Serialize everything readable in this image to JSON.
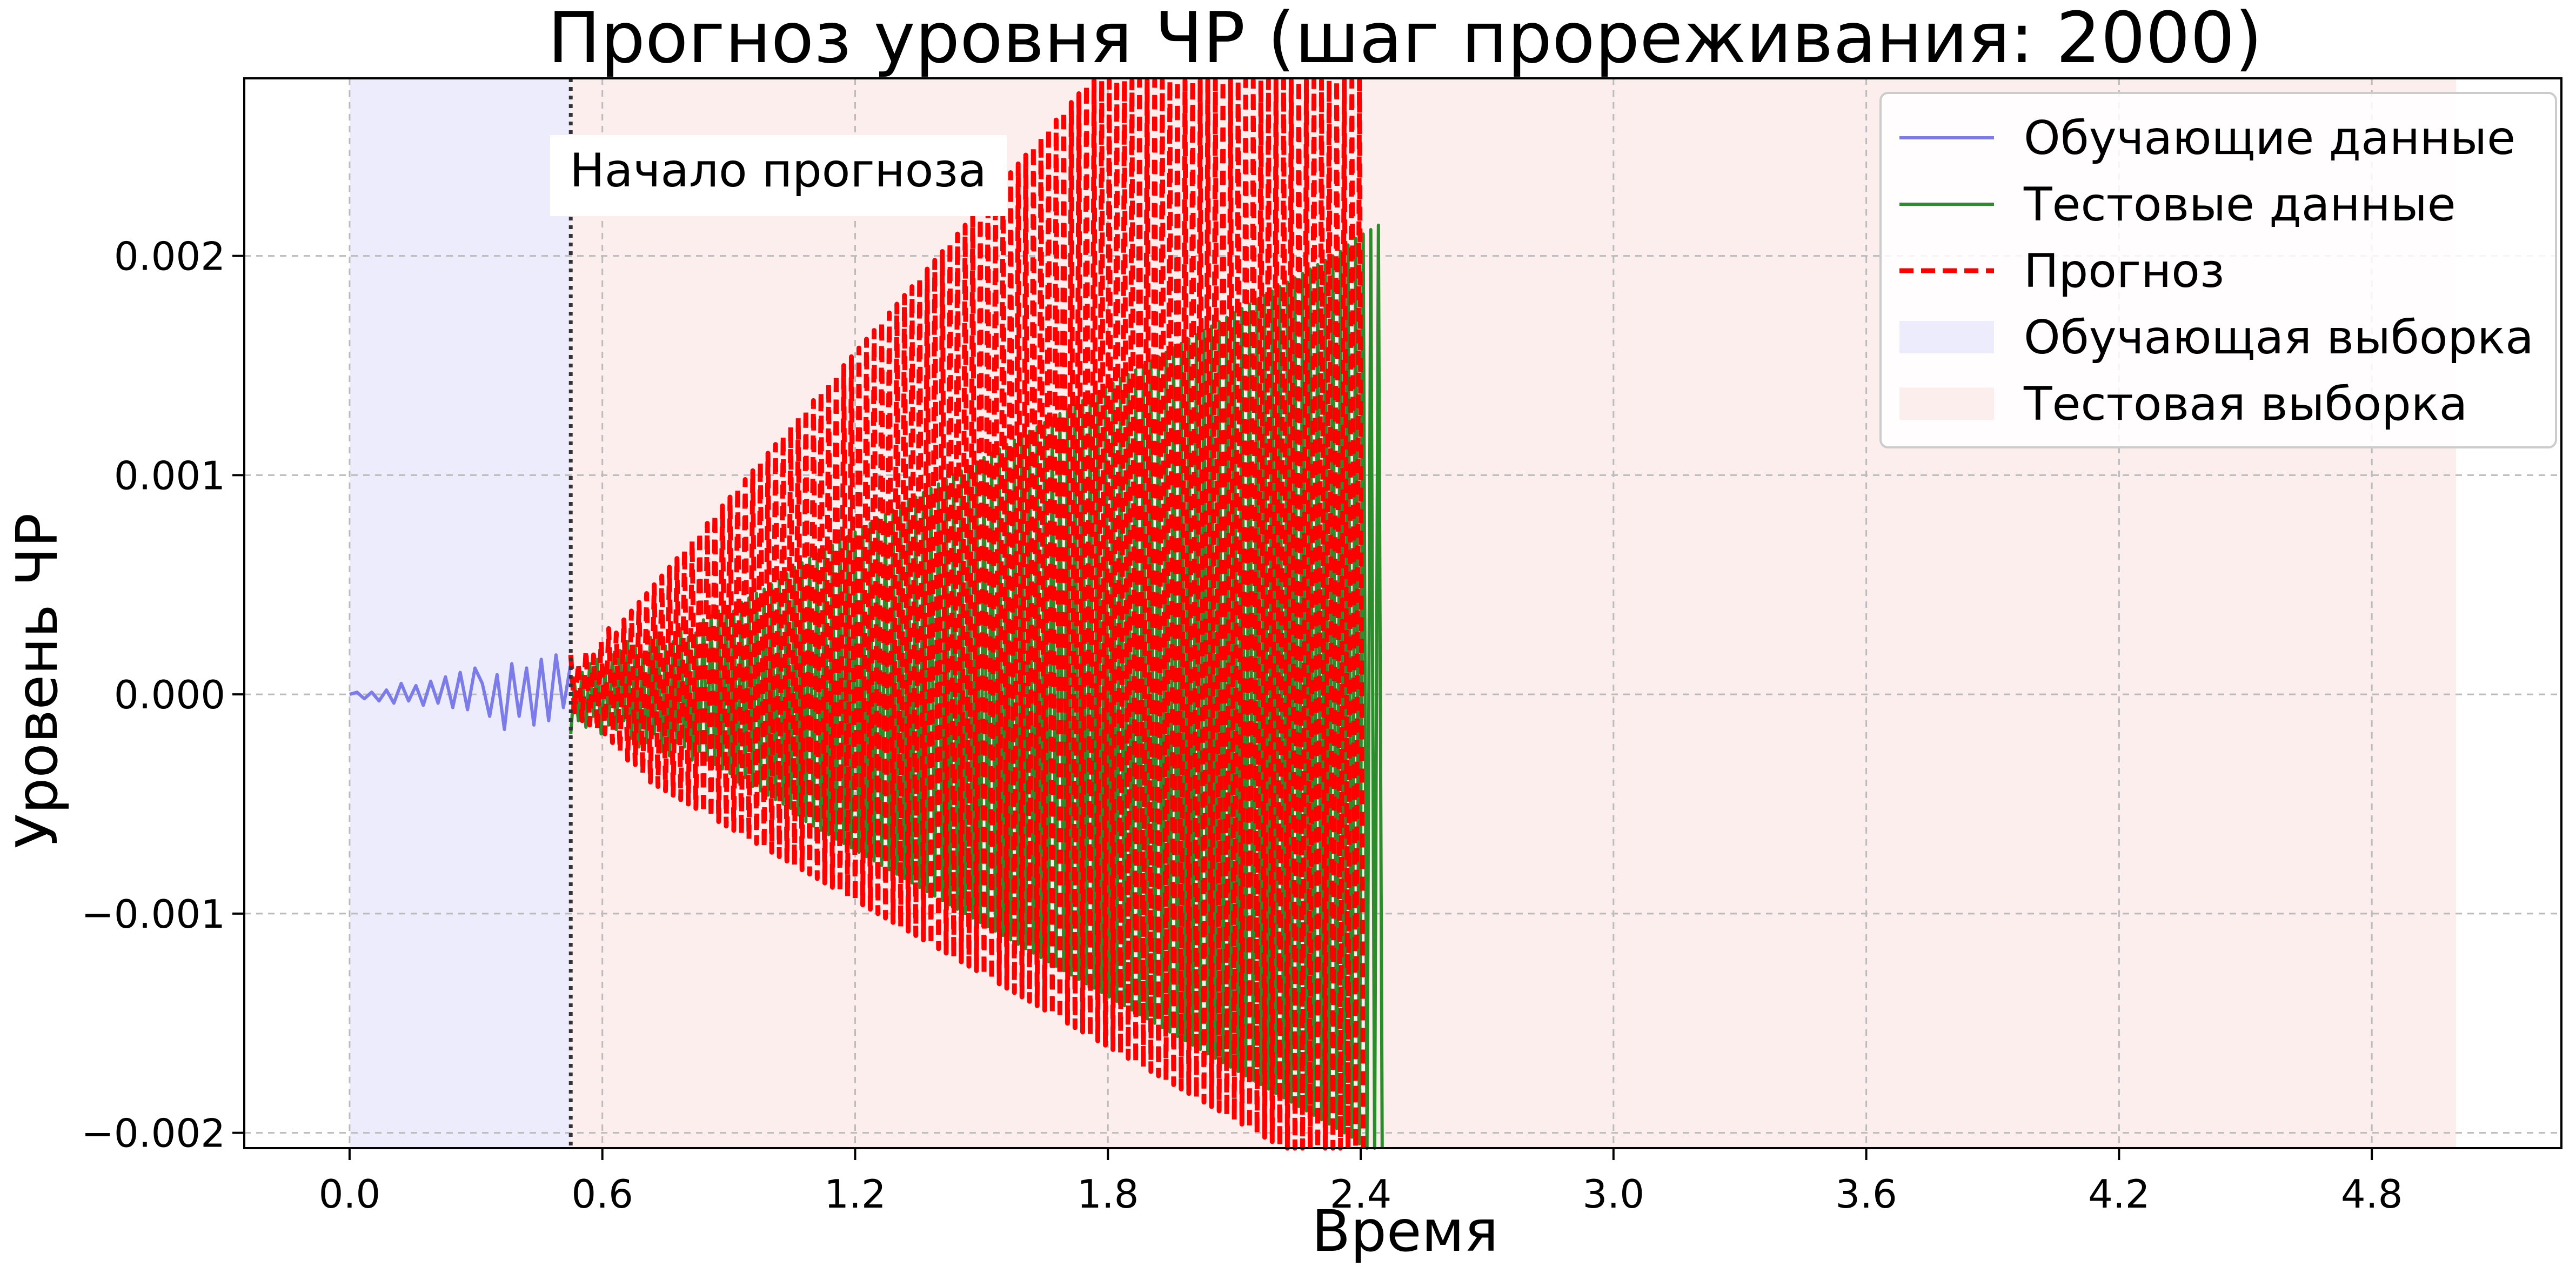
{
  "chart_data": {
    "type": "line",
    "title": "Прогноз уровня ЧР (шаг прореживания: 2000)",
    "xlabel": "Время",
    "ylabel": "Уровень ЧР",
    "xlim": [
      -0.25,
      5.25
    ],
    "ylim": [
      -0.00207,
      0.00281
    ],
    "x_ticks": [
      0.0,
      0.6,
      1.2,
      1.8,
      2.4,
      3.0,
      3.6,
      4.2,
      4.8
    ],
    "x_tick_labels": [
      "0.0",
      "0.6",
      "1.2",
      "1.8",
      "2.4",
      "3.0",
      "3.6",
      "4.2",
      "4.8"
    ],
    "y_ticks": [
      -0.002,
      -0.001,
      0.0,
      0.001,
      0.002
    ],
    "y_tick_labels": [
      "−0.002",
      "−0.001",
      "0.000",
      "0.001",
      "0.002"
    ],
    "grid": true,
    "legend_position": "top-right",
    "forecast_start": 0.525,
    "forecast_label": "Начало прогноза",
    "regions": [
      {
        "name": "Обучающая выборка",
        "x": [
          0.0,
          0.525
        ],
        "color": "#ececfc"
      },
      {
        "name": "Тестовая выборка",
        "x": [
          0.525,
          5.0
        ],
        "color": "#fdeeee"
      }
    ],
    "series": [
      {
        "name": "Обучающие данные",
        "color": "#7b7bea",
        "style": "solid",
        "x_start": 0.0,
        "x_step": 0.0175,
        "values": [
          0.0,
          1e-05,
          -2e-05,
          1e-05,
          -3e-05,
          2e-05,
          -4e-05,
          5e-05,
          -3e-05,
          4e-05,
          -5e-05,
          6e-05,
          -4e-05,
          8e-05,
          -6e-05,
          0.0001,
          -7e-05,
          0.00012,
          5e-05,
          -0.0001,
          9e-05,
          -0.00016,
          0.00014,
          -0.0001,
          0.00012,
          -0.00014,
          0.00016,
          -0.00012,
          0.00018,
          -6e-05,
          0.00014
        ]
      },
      {
        "name": "Тестовые данные",
        "color": "#2a8c2a",
        "style": "solid",
        "x_start": 0.525,
        "x_step": 0.009,
        "values": [
          -0.00018,
          5e-05,
          -0.00012,
          0.0001,
          -0.00015,
          0.00014,
          -0.0001,
          0.00016,
          -0.00018,
          0.00012,
          -0.00014,
          0.00018,
          -0.00016,
          0.0002,
          -0.00012,
          0.00024,
          -0.0002,
          0.00022,
          -0.00024,
          0.00018,
          -0.00022,
          0.00026,
          -0.00018,
          0.00028,
          -0.00026,
          0.00022,
          -0.00028,
          0.00024,
          -0.00022,
          0.0003,
          -0.00024,
          0.00026,
          -0.0003,
          0.00028,
          -0.00026,
          0.00034,
          -0.0003,
          0.00036,
          -0.00032,
          0.00038,
          -0.00034,
          0.0004,
          -0.00036,
          0.00038,
          -0.0004,
          0.00042,
          -0.00038,
          0.00044,
          -0.00042,
          0.00046,
          -0.00044,
          0.00048,
          -0.00046,
          0.0005,
          -0.00048,
          0.00052,
          -0.0005,
          0.00055,
          -0.00052,
          0.00058,
          -0.00055,
          0.0006,
          -0.00058,
          0.00062,
          -0.0006,
          0.00064,
          -0.00062,
          0.00066,
          -0.00064,
          0.00068,
          -0.00066,
          0.0007,
          -0.00068,
          0.00072,
          -0.0007,
          0.00074,
          -0.00072,
          0.00076,
          -0.00074,
          0.00078,
          -0.00076,
          0.0008,
          -0.00078,
          0.00082,
          -0.0008,
          0.00084,
          -0.00082,
          0.00086,
          -0.00084,
          0.00088,
          -0.00086,
          0.0009,
          -0.00088,
          0.00092,
          -0.0009,
          0.00094,
          -0.00092,
          0.00096,
          -0.00094,
          0.00098,
          -0.00096,
          0.001,
          -0.00098,
          0.00102,
          -0.001,
          0.00104,
          -0.00102,
          0.00106,
          -0.00104,
          0.00108,
          -0.00106,
          0.0011,
          -0.00108,
          0.00112,
          -0.0011,
          0.00114,
          -0.00112,
          0.00116,
          -0.00114,
          0.00118,
          -0.00116,
          0.0012,
          -0.00118,
          0.00122,
          -0.0012,
          0.00124,
          -0.00122,
          0.00126,
          -0.00124,
          0.00128,
          -0.00126,
          0.0013,
          -0.00128,
          0.00132,
          -0.0013,
          0.00134,
          -0.00132,
          0.00136,
          -0.00134,
          0.00138,
          -0.00136,
          0.0014,
          -0.00138,
          0.00142,
          -0.0014,
          0.00144,
          -0.00142,
          0.00146,
          -0.00144,
          0.00148,
          -0.00146,
          0.0015,
          -0.00148,
          0.00152,
          -0.0015,
          0.00154,
          -0.00152,
          0.00156,
          -0.00154,
          0.00158,
          -0.00156,
          0.0016,
          -0.00158,
          0.00162,
          -0.0016,
          0.00164,
          -0.00162,
          0.00166,
          -0.00164,
          0.00168,
          -0.00166,
          0.0017,
          -0.00168,
          0.00172,
          -0.0017,
          0.00174,
          -0.00172,
          0.00176,
          -0.00174,
          0.00178,
          -0.00176,
          0.0018,
          -0.00178,
          0.00182,
          -0.0018,
          0.00184,
          -0.00182,
          0.00186,
          -0.00184,
          0.00188,
          -0.00186,
          0.0019,
          -0.00188,
          0.00192,
          -0.0019,
          0.00194,
          -0.00192,
          0.00196,
          -0.00194,
          0.00198,
          -0.00196,
          0.002,
          -0.00198,
          0.00202,
          -0.002,
          0.00205,
          -0.00202,
          0.00208,
          -0.00205,
          0.0021,
          -0.00208,
          0.00212,
          -0.0021,
          0.00214,
          -0.00212
        ]
      },
      {
        "name": "Прогноз",
        "color": "#ff0000",
        "style": "dashed",
        "x_start": 0.525,
        "x_step": 0.009,
        "values": [
          0.00018,
          -8e-05,
          0.00014,
          -0.00012,
          0.0002,
          -0.00014,
          0.00018,
          -0.00016,
          0.00024,
          -0.00018,
          0.0003,
          -0.00022,
          0.00028,
          -0.00026,
          0.00034,
          -0.0003,
          0.00038,
          -0.00032,
          0.00042,
          -0.00036,
          0.00046,
          -0.0004,
          0.0005,
          -0.00042,
          0.00054,
          -0.00044,
          0.00058,
          -0.00046,
          0.00062,
          -0.00048,
          0.00066,
          -0.0005,
          0.0007,
          -0.00052,
          0.00074,
          -0.00054,
          0.00078,
          -0.00056,
          0.00082,
          -0.00058,
          0.00086,
          -0.0006,
          0.0009,
          -0.00062,
          0.00094,
          -0.00064,
          0.00098,
          -0.00066,
          0.00102,
          -0.00068,
          0.00106,
          -0.0007,
          0.0011,
          -0.00072,
          0.00114,
          -0.00074,
          0.00118,
          -0.00076,
          0.00122,
          -0.00078,
          0.00126,
          -0.0008,
          0.0013,
          -0.00082,
          0.00134,
          -0.00084,
          0.00138,
          -0.00086,
          0.00142,
          -0.00088,
          0.00146,
          -0.0009,
          0.0015,
          -0.00092,
          0.00154,
          -0.00094,
          0.00158,
          -0.00096,
          0.00162,
          -0.00098,
          0.00166,
          -0.001,
          0.0017,
          -0.00102,
          0.00174,
          -0.00104,
          0.00178,
          -0.00106,
          0.00182,
          -0.00108,
          0.00186,
          -0.0011,
          0.0019,
          -0.00112,
          0.00194,
          -0.00114,
          0.00198,
          -0.00116,
          0.00202,
          -0.00118,
          0.00206,
          -0.0012,
          0.0021,
          -0.00122,
          0.00214,
          -0.00124,
          0.00218,
          -0.00126,
          0.00222,
          -0.00128,
          0.00226,
          -0.0013,
          0.0023,
          -0.00132,
          0.00234,
          -0.00134,
          0.00238,
          -0.00136,
          0.00242,
          -0.00138,
          0.00246,
          -0.0014,
          0.0025,
          -0.00142,
          0.00254,
          -0.00144,
          0.00258,
          -0.00146,
          0.00262,
          -0.00148,
          0.00266,
          -0.0015,
          0.0027,
          -0.00152,
          0.00274,
          -0.00154,
          0.00278,
          -0.00156,
          0.0028,
          -0.00158,
          0.0028,
          -0.0016,
          0.0028,
          -0.00162,
          0.0028,
          -0.00164,
          0.0028,
          -0.00166,
          0.0028,
          -0.00168,
          0.0028,
          -0.0017,
          0.0028,
          -0.00172,
          0.0028,
          -0.00174,
          0.0028,
          -0.00176,
          0.0028,
          -0.00178,
          0.0028,
          -0.0018,
          0.0028,
          -0.00182,
          0.0028,
          -0.00184,
          0.0028,
          -0.00186,
          0.0028,
          -0.00188,
          0.0028,
          -0.0019,
          0.0028,
          -0.00192,
          0.0028,
          -0.00194,
          0.0028,
          -0.00196,
          0.0028,
          -0.00198,
          0.0028,
          -0.002,
          0.0028,
          -0.00202,
          0.0028,
          -0.00204,
          0.0028,
          -0.00206,
          0.0028,
          -0.00207,
          0.0028,
          -0.00207,
          0.0028,
          -0.00207,
          0.0028,
          -0.00207,
          0.0028,
          -0.00207,
          0.0028,
          -0.00207,
          0.0028,
          -0.00207,
          0.0028,
          -0.00207,
          0.0028,
          -0.00207,
          0.0028,
          -0.00207,
          0.0028,
          -0.00207
        ]
      }
    ]
  }
}
